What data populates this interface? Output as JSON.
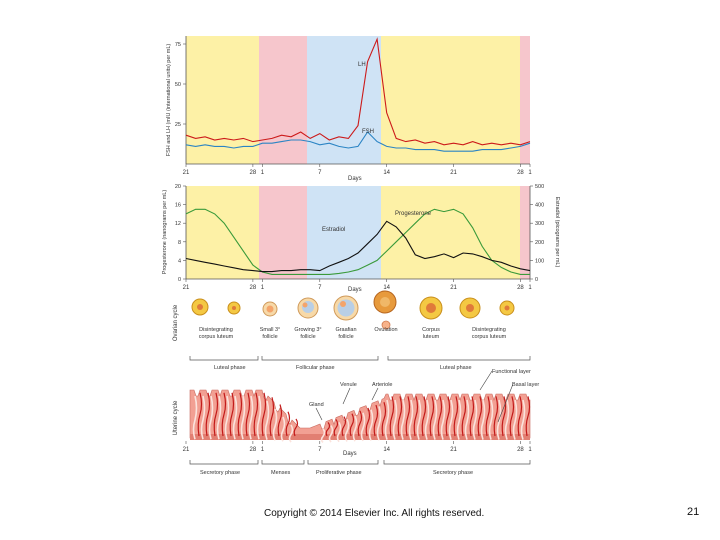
{
  "colors": {
    "yellow": "#fdf1a6",
    "pink": "#f6c6cc",
    "blue": "#cfe3f5",
    "lh": "#cc1a1a",
    "fsh": "#2a84c4",
    "progesterone": "#3a9a3a",
    "estradiol": "#111111",
    "tissue": "#f2a093",
    "vessel": "#c21a1a"
  },
  "hormone_chart": {
    "ylabel": "FSH and LH (mIU (international units) per mL)",
    "yticks": [
      "75",
      "50",
      "25"
    ],
    "lh_label": "LH",
    "fsh_label": "FSH",
    "xlabel": "Days",
    "xticks": [
      "21",
      "28",
      "1",
      "7",
      "14",
      "21",
      "28",
      "1"
    ]
  },
  "steroid_chart": {
    "ylabel_left": "Progesterone (nanograms per mL)",
    "ylabel_right": "Estradiol (picograms per mL)",
    "yticks_left": [
      "20",
      "16",
      "12",
      "8",
      "4",
      "0"
    ],
    "yticks_right": [
      "500",
      "400",
      "300",
      "200",
      "100",
      "0"
    ],
    "progesterone_label": "Progesterone",
    "estradiol_label": "Estradiol",
    "xlabel": "Days",
    "xticks": [
      "21",
      "28",
      "1",
      "7",
      "14",
      "21",
      "28",
      "1"
    ]
  },
  "chart_data": [
    {
      "type": "line",
      "title": "",
      "xlabel": "Days",
      "ylabel": "FSH and LH (mIU (international units) per mL)",
      "ylim": [
        0,
        80
      ],
      "x_domain": [
        21,
        57
      ],
      "series": [
        {
          "name": "LH",
          "x": [
            21,
            22,
            23,
            24,
            25,
            26,
            27,
            28,
            29,
            30,
            31,
            32,
            33,
            34,
            35,
            36,
            37,
            38,
            39,
            40,
            41,
            42,
            43,
            44,
            45,
            46,
            47,
            48,
            49,
            50,
            51,
            52,
            53,
            54,
            55,
            56,
            57
          ],
          "values": [
            18,
            16,
            17,
            15,
            16,
            15,
            16,
            14,
            15,
            16,
            18,
            17,
            20,
            16,
            19,
            15,
            17,
            16,
            24,
            64,
            78,
            32,
            16,
            14,
            15,
            13,
            14,
            12,
            13,
            12,
            14,
            12,
            13,
            12,
            13,
            12,
            14
          ]
        },
        {
          "name": "FSH",
          "x": [
            21,
            22,
            23,
            24,
            25,
            26,
            27,
            28,
            29,
            30,
            31,
            32,
            33,
            34,
            35,
            36,
            37,
            38,
            39,
            40,
            41,
            42,
            43,
            44,
            45,
            46,
            47,
            48,
            49,
            50,
            51,
            52,
            53,
            54,
            55,
            56,
            57
          ],
          "values": [
            12,
            11,
            12,
            11,
            11,
            10,
            11,
            11,
            13,
            13,
            14,
            15,
            15,
            14,
            12,
            13,
            11,
            10,
            11,
            20,
            14,
            11,
            10,
            10,
            9,
            9,
            9,
            8,
            8,
            8,
            8,
            9,
            9,
            9,
            10,
            11,
            13
          ]
        }
      ]
    },
    {
      "type": "line",
      "title": "",
      "xlabel": "Days",
      "ylabel": "Progesterone (nanograms per mL)",
      "ylabel_right": "Estradiol (picograms per mL)",
      "ylim": [
        0,
        20
      ],
      "ylim_right": [
        0,
        500
      ],
      "x_domain": [
        21,
        57
      ],
      "series": [
        {
          "name": "Progesterone",
          "axis": "left",
          "x": [
            21,
            22,
            23,
            24,
            25,
            26,
            27,
            28,
            29,
            30,
            31,
            32,
            33,
            34,
            35,
            36,
            37,
            38,
            39,
            40,
            41,
            42,
            43,
            44,
            45,
            46,
            47,
            48,
            49,
            50,
            51,
            52,
            53,
            54,
            55,
            56,
            57
          ],
          "values": [
            14,
            15,
            15,
            14,
            12,
            9,
            6,
            3,
            1.5,
            1,
            1,
            1,
            1,
            1,
            1,
            1,
            1.2,
            1.5,
            2,
            3,
            4,
            6,
            8,
            10,
            12,
            14,
            15,
            14.5,
            15,
            14,
            11,
            7,
            4,
            2.5,
            1.5,
            1,
            1
          ]
        },
        {
          "name": "Estradiol",
          "axis": "right",
          "x": [
            21,
            22,
            23,
            24,
            25,
            26,
            27,
            28,
            29,
            30,
            31,
            32,
            33,
            34,
            35,
            36,
            37,
            38,
            39,
            40,
            41,
            42,
            43,
            44,
            45,
            46,
            47,
            48,
            49,
            50,
            51,
            52,
            53,
            54,
            55,
            56,
            57
          ],
          "values": [
            110,
            100,
            90,
            80,
            70,
            60,
            50,
            45,
            40,
            40,
            45,
            45,
            50,
            50,
            45,
            70,
            90,
            110,
            140,
            190,
            240,
            310,
            280,
            220,
            130,
            110,
            120,
            135,
            115,
            140,
            135,
            120,
            100,
            90,
            70,
            55,
            45
          ]
        }
      ]
    }
  ],
  "ovarian_cycle": {
    "label": "Ovarian cycle",
    "stages": [
      "Disintegrating corpus luteum",
      "Small 3° follicle",
      "Growing 3° follicle",
      "Graafian follicle",
      "Ovulation",
      "Corpus luteum",
      "Disintegrating corpus luteum"
    ],
    "phases": [
      "Luteal phase",
      "Follicular phase",
      "Luteal phase"
    ]
  },
  "uterine_cycle": {
    "label": "Uterine cycle",
    "annotations": {
      "venule": "Venule",
      "arteriole": "Arteriole",
      "gland": "Gland",
      "functional": "Functional layer",
      "basal": "Basal layer"
    },
    "xlabel": "Days",
    "xticks": [
      "21",
      "28",
      "1",
      "7",
      "14",
      "21",
      "28",
      "1"
    ],
    "phases": [
      "Secretory phase",
      "Menses",
      "Proliferative phase",
      "Secretory phase"
    ]
  },
  "footer": {
    "copyright": "Copyright © 2014 Elsevier Inc. All rights reserved.",
    "page_number": "21"
  }
}
